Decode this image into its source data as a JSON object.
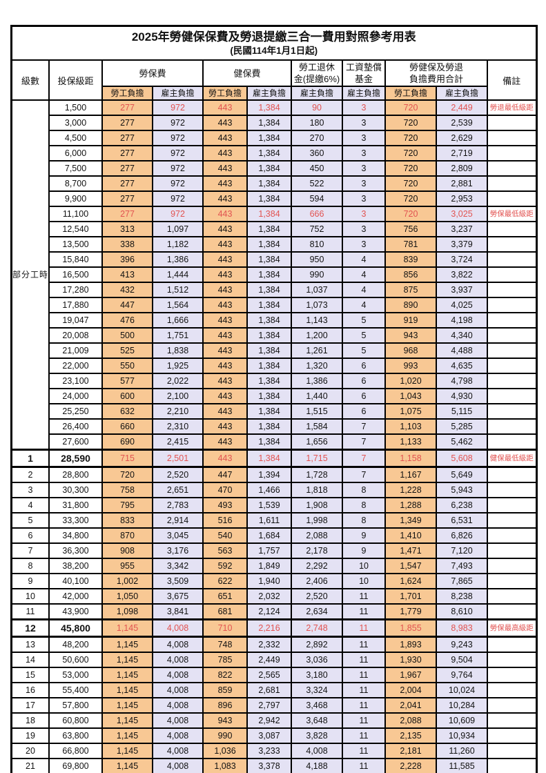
{
  "title": "2025年勞健保保費及勞退提繳三合一費用對照參考用表",
  "subtitle": "(民國114年1月1日起)",
  "header": {
    "level": "級數",
    "bracket": "投保級距",
    "labor_insurance": "勞保費",
    "health_insurance": "健保費",
    "pension_line1": "勞工退休",
    "pension_line2": "金(提繳6%)",
    "wage_fund_line1": "工資墊償",
    "wage_fund_line2": "基金",
    "total_line1": "勞健保及勞退",
    "total_line2": "負擔費用合計",
    "remark": "備註",
    "employee_share": "勞工負擔",
    "employer_share": "雇主負擔"
  },
  "colors": {
    "employee_bg": "#F8C894",
    "employer_bg": "#E4E2F4",
    "highlight_red": "#E25351"
  },
  "part_time_label": "部分工時",
  "part_time_rowspan": 23,
  "rows": [
    {
      "level": "",
      "bracket": "1,500",
      "li_emp": "277",
      "li_er": "972",
      "hi_emp": "443",
      "hi_er": "1,384",
      "pension": "90",
      "fund": "3",
      "tot_emp": "720",
      "tot_er": "2,449",
      "remark": "勞退最低級距",
      "red": true,
      "em": false
    },
    {
      "level": "",
      "bracket": "3,000",
      "li_emp": "277",
      "li_er": "972",
      "hi_emp": "443",
      "hi_er": "1,384",
      "pension": "180",
      "fund": "3",
      "tot_emp": "720",
      "tot_er": "2,539",
      "remark": "",
      "red": false,
      "em": false
    },
    {
      "level": "",
      "bracket": "4,500",
      "li_emp": "277",
      "li_er": "972",
      "hi_emp": "443",
      "hi_er": "1,384",
      "pension": "270",
      "fund": "3",
      "tot_emp": "720",
      "tot_er": "2,629",
      "remark": "",
      "red": false,
      "em": false
    },
    {
      "level": "",
      "bracket": "6,000",
      "li_emp": "277",
      "li_er": "972",
      "hi_emp": "443",
      "hi_er": "1,384",
      "pension": "360",
      "fund": "3",
      "tot_emp": "720",
      "tot_er": "2,719",
      "remark": "",
      "red": false,
      "em": false
    },
    {
      "level": "",
      "bracket": "7,500",
      "li_emp": "277",
      "li_er": "972",
      "hi_emp": "443",
      "hi_er": "1,384",
      "pension": "450",
      "fund": "3",
      "tot_emp": "720",
      "tot_er": "2,809",
      "remark": "",
      "red": false,
      "em": false
    },
    {
      "level": "",
      "bracket": "8,700",
      "li_emp": "277",
      "li_er": "972",
      "hi_emp": "443",
      "hi_er": "1,384",
      "pension": "522",
      "fund": "3",
      "tot_emp": "720",
      "tot_er": "2,881",
      "remark": "",
      "red": false,
      "em": false
    },
    {
      "level": "",
      "bracket": "9,900",
      "li_emp": "277",
      "li_er": "972",
      "hi_emp": "443",
      "hi_er": "1,384",
      "pension": "594",
      "fund": "3",
      "tot_emp": "720",
      "tot_er": "2,953",
      "remark": "",
      "red": false,
      "em": false
    },
    {
      "level": "",
      "bracket": "11,100",
      "li_emp": "277",
      "li_er": "972",
      "hi_emp": "443",
      "hi_er": "1,384",
      "pension": "666",
      "fund": "3",
      "tot_emp": "720",
      "tot_er": "3,025",
      "remark": "勞保最低級距",
      "red": true,
      "em": false
    },
    {
      "level": "",
      "bracket": "12,540",
      "li_emp": "313",
      "li_er": "1,097",
      "hi_emp": "443",
      "hi_er": "1,384",
      "pension": "752",
      "fund": "3",
      "tot_emp": "756",
      "tot_er": "3,237",
      "remark": "",
      "red": false,
      "em": false
    },
    {
      "level": "",
      "bracket": "13,500",
      "li_emp": "338",
      "li_er": "1,182",
      "hi_emp": "443",
      "hi_er": "1,384",
      "pension": "810",
      "fund": "3",
      "tot_emp": "781",
      "tot_er": "3,379",
      "remark": "",
      "red": false,
      "em": false
    },
    {
      "level": "",
      "bracket": "15,840",
      "li_emp": "396",
      "li_er": "1,386",
      "hi_emp": "443",
      "hi_er": "1,384",
      "pension": "950",
      "fund": "4",
      "tot_emp": "839",
      "tot_er": "3,724",
      "remark": "",
      "red": false,
      "em": false
    },
    {
      "level": "",
      "bracket": "16,500",
      "li_emp": "413",
      "li_er": "1,444",
      "hi_emp": "443",
      "hi_er": "1,384",
      "pension": "990",
      "fund": "4",
      "tot_emp": "856",
      "tot_er": "3,822",
      "remark": "",
      "red": false,
      "em": false
    },
    {
      "level": "",
      "bracket": "17,280",
      "li_emp": "432",
      "li_er": "1,512",
      "hi_emp": "443",
      "hi_er": "1,384",
      "pension": "1,037",
      "fund": "4",
      "tot_emp": "875",
      "tot_er": "3,937",
      "remark": "",
      "red": false,
      "em": false
    },
    {
      "level": "",
      "bracket": "17,880",
      "li_emp": "447",
      "li_er": "1,564",
      "hi_emp": "443",
      "hi_er": "1,384",
      "pension": "1,073",
      "fund": "4",
      "tot_emp": "890",
      "tot_er": "4,025",
      "remark": "",
      "red": false,
      "em": false
    },
    {
      "level": "",
      "bracket": "19,047",
      "li_emp": "476",
      "li_er": "1,666",
      "hi_emp": "443",
      "hi_er": "1,384",
      "pension": "1,143",
      "fund": "5",
      "tot_emp": "919",
      "tot_er": "4,198",
      "remark": "",
      "red": false,
      "em": false
    },
    {
      "level": "",
      "bracket": "20,008",
      "li_emp": "500",
      "li_er": "1,751",
      "hi_emp": "443",
      "hi_er": "1,384",
      "pension": "1,200",
      "fund": "5",
      "tot_emp": "943",
      "tot_er": "4,340",
      "remark": "",
      "red": false,
      "em": false
    },
    {
      "level": "",
      "bracket": "21,009",
      "li_emp": "525",
      "li_er": "1,838",
      "hi_emp": "443",
      "hi_er": "1,384",
      "pension": "1,261",
      "fund": "5",
      "tot_emp": "968",
      "tot_er": "4,488",
      "remark": "",
      "red": false,
      "em": false
    },
    {
      "level": "",
      "bracket": "22,000",
      "li_emp": "550",
      "li_er": "1,925",
      "hi_emp": "443",
      "hi_er": "1,384",
      "pension": "1,320",
      "fund": "6",
      "tot_emp": "993",
      "tot_er": "4,635",
      "remark": "",
      "red": false,
      "em": false
    },
    {
      "level": "",
      "bracket": "23,100",
      "li_emp": "577",
      "li_er": "2,022",
      "hi_emp": "443",
      "hi_er": "1,384",
      "pension": "1,386",
      "fund": "6",
      "tot_emp": "1,020",
      "tot_er": "4,798",
      "remark": "",
      "red": false,
      "em": false
    },
    {
      "level": "",
      "bracket": "24,000",
      "li_emp": "600",
      "li_er": "2,100",
      "hi_emp": "443",
      "hi_er": "1,384",
      "pension": "1,440",
      "fund": "6",
      "tot_emp": "1,043",
      "tot_er": "4,930",
      "remark": "",
      "red": false,
      "em": false
    },
    {
      "level": "",
      "bracket": "25,250",
      "li_emp": "632",
      "li_er": "2,210",
      "hi_emp": "443",
      "hi_er": "1,384",
      "pension": "1,515",
      "fund": "6",
      "tot_emp": "1,075",
      "tot_er": "5,115",
      "remark": "",
      "red": false,
      "em": false
    },
    {
      "level": "",
      "bracket": "26,400",
      "li_emp": "660",
      "li_er": "2,310",
      "hi_emp": "443",
      "hi_er": "1,384",
      "pension": "1,584",
      "fund": "7",
      "tot_emp": "1,103",
      "tot_er": "5,285",
      "remark": "",
      "red": false,
      "em": false
    },
    {
      "level": "",
      "bracket": "27,600",
      "li_emp": "690",
      "li_er": "2,415",
      "hi_emp": "443",
      "hi_er": "1,384",
      "pension": "1,656",
      "fund": "7",
      "tot_emp": "1,133",
      "tot_er": "5,462",
      "remark": "",
      "red": false,
      "em": false
    },
    {
      "level": "1",
      "bracket": "28,590",
      "li_emp": "715",
      "li_er": "2,501",
      "hi_emp": "443",
      "hi_er": "1,384",
      "pension": "1,715",
      "fund": "7",
      "tot_emp": "1,158",
      "tot_er": "5,608",
      "remark": "健保最低級距",
      "red": true,
      "em": true
    },
    {
      "level": "2",
      "bracket": "28,800",
      "li_emp": "720",
      "li_er": "2,520",
      "hi_emp": "447",
      "hi_er": "1,394",
      "pension": "1,728",
      "fund": "7",
      "tot_emp": "1,167",
      "tot_er": "5,649",
      "remark": "",
      "red": false,
      "em": false
    },
    {
      "level": "3",
      "bracket": "30,300",
      "li_emp": "758",
      "li_er": "2,651",
      "hi_emp": "470",
      "hi_er": "1,466",
      "pension": "1,818",
      "fund": "8",
      "tot_emp": "1,228",
      "tot_er": "5,943",
      "remark": "",
      "red": false,
      "em": false
    },
    {
      "level": "4",
      "bracket": "31,800",
      "li_emp": "795",
      "li_er": "2,783",
      "hi_emp": "493",
      "hi_er": "1,539",
      "pension": "1,908",
      "fund": "8",
      "tot_emp": "1,288",
      "tot_er": "6,238",
      "remark": "",
      "red": false,
      "em": false
    },
    {
      "level": "5",
      "bracket": "33,300",
      "li_emp": "833",
      "li_er": "2,914",
      "hi_emp": "516",
      "hi_er": "1,611",
      "pension": "1,998",
      "fund": "8",
      "tot_emp": "1,349",
      "tot_er": "6,531",
      "remark": "",
      "red": false,
      "em": false
    },
    {
      "level": "6",
      "bracket": "34,800",
      "li_emp": "870",
      "li_er": "3,045",
      "hi_emp": "540",
      "hi_er": "1,684",
      "pension": "2,088",
      "fund": "9",
      "tot_emp": "1,410",
      "tot_er": "6,826",
      "remark": "",
      "red": false,
      "em": false
    },
    {
      "level": "7",
      "bracket": "36,300",
      "li_emp": "908",
      "li_er": "3,176",
      "hi_emp": "563",
      "hi_er": "1,757",
      "pension": "2,178",
      "fund": "9",
      "tot_emp": "1,471",
      "tot_er": "7,120",
      "remark": "",
      "red": false,
      "em": false
    },
    {
      "level": "8",
      "bracket": "38,200",
      "li_emp": "955",
      "li_er": "3,342",
      "hi_emp": "592",
      "hi_er": "1,849",
      "pension": "2,292",
      "fund": "10",
      "tot_emp": "1,547",
      "tot_er": "7,493",
      "remark": "",
      "red": false,
      "em": false
    },
    {
      "level": "9",
      "bracket": "40,100",
      "li_emp": "1,002",
      "li_er": "3,509",
      "hi_emp": "622",
      "hi_er": "1,940",
      "pension": "2,406",
      "fund": "10",
      "tot_emp": "1,624",
      "tot_er": "7,865",
      "remark": "",
      "red": false,
      "em": false
    },
    {
      "level": "10",
      "bracket": "42,000",
      "li_emp": "1,050",
      "li_er": "3,675",
      "hi_emp": "651",
      "hi_er": "2,032",
      "pension": "2,520",
      "fund": "11",
      "tot_emp": "1,701",
      "tot_er": "8,238",
      "remark": "",
      "red": false,
      "em": false
    },
    {
      "level": "11",
      "bracket": "43,900",
      "li_emp": "1,098",
      "li_er": "3,841",
      "hi_emp": "681",
      "hi_er": "2,124",
      "pension": "2,634",
      "fund": "11",
      "tot_emp": "1,779",
      "tot_er": "8,610",
      "remark": "",
      "red": false,
      "em": false
    },
    {
      "level": "12",
      "bracket": "45,800",
      "li_emp": "1,145",
      "li_er": "4,008",
      "hi_emp": "710",
      "hi_er": "2,216",
      "pension": "2,748",
      "fund": "11",
      "tot_emp": "1,855",
      "tot_er": "8,983",
      "remark": "勞保最高級距",
      "red": true,
      "em": true
    },
    {
      "level": "13",
      "bracket": "48,200",
      "li_emp": "1,145",
      "li_er": "4,008",
      "hi_emp": "748",
      "hi_er": "2,332",
      "pension": "2,892",
      "fund": "11",
      "tot_emp": "1,893",
      "tot_er": "9,243",
      "remark": "",
      "red": false,
      "em": false
    },
    {
      "level": "14",
      "bracket": "50,600",
      "li_emp": "1,145",
      "li_er": "4,008",
      "hi_emp": "785",
      "hi_er": "2,449",
      "pension": "3,036",
      "fund": "11",
      "tot_emp": "1,930",
      "tot_er": "9,504",
      "remark": "",
      "red": false,
      "em": false
    },
    {
      "level": "15",
      "bracket": "53,000",
      "li_emp": "1,145",
      "li_er": "4,008",
      "hi_emp": "822",
      "hi_er": "2,565",
      "pension": "3,180",
      "fund": "11",
      "tot_emp": "1,967",
      "tot_er": "9,764",
      "remark": "",
      "red": false,
      "em": false
    },
    {
      "level": "16",
      "bracket": "55,400",
      "li_emp": "1,145",
      "li_er": "4,008",
      "hi_emp": "859",
      "hi_er": "2,681",
      "pension": "3,324",
      "fund": "11",
      "tot_emp": "2,004",
      "tot_er": "10,024",
      "remark": "",
      "red": false,
      "em": false
    },
    {
      "level": "17",
      "bracket": "57,800",
      "li_emp": "1,145",
      "li_er": "4,008",
      "hi_emp": "896",
      "hi_er": "2,797",
      "pension": "3,468",
      "fund": "11",
      "tot_emp": "2,041",
      "tot_er": "10,284",
      "remark": "",
      "red": false,
      "em": false
    },
    {
      "level": "18",
      "bracket": "60,800",
      "li_emp": "1,145",
      "li_er": "4,008",
      "hi_emp": "943",
      "hi_er": "2,942",
      "pension": "3,648",
      "fund": "11",
      "tot_emp": "2,088",
      "tot_er": "10,609",
      "remark": "",
      "red": false,
      "em": false
    },
    {
      "level": "19",
      "bracket": "63,800",
      "li_emp": "1,145",
      "li_er": "4,008",
      "hi_emp": "990",
      "hi_er": "3,087",
      "pension": "3,828",
      "fund": "11",
      "tot_emp": "2,135",
      "tot_er": "10,934",
      "remark": "",
      "red": false,
      "em": false
    },
    {
      "level": "20",
      "bracket": "66,800",
      "li_emp": "1,145",
      "li_er": "4,008",
      "hi_emp": "1,036",
      "hi_er": "3,233",
      "pension": "4,008",
      "fund": "11",
      "tot_emp": "2,181",
      "tot_er": "11,260",
      "remark": "",
      "red": false,
      "em": false
    },
    {
      "level": "21",
      "bracket": "69,800",
      "li_emp": "1,145",
      "li_er": "4,008",
      "hi_emp": "1,083",
      "hi_er": "3,378",
      "pension": "4,188",
      "fund": "11",
      "tot_emp": "2,228",
      "tot_er": "11,585",
      "remark": "",
      "red": false,
      "em": false
    }
  ]
}
